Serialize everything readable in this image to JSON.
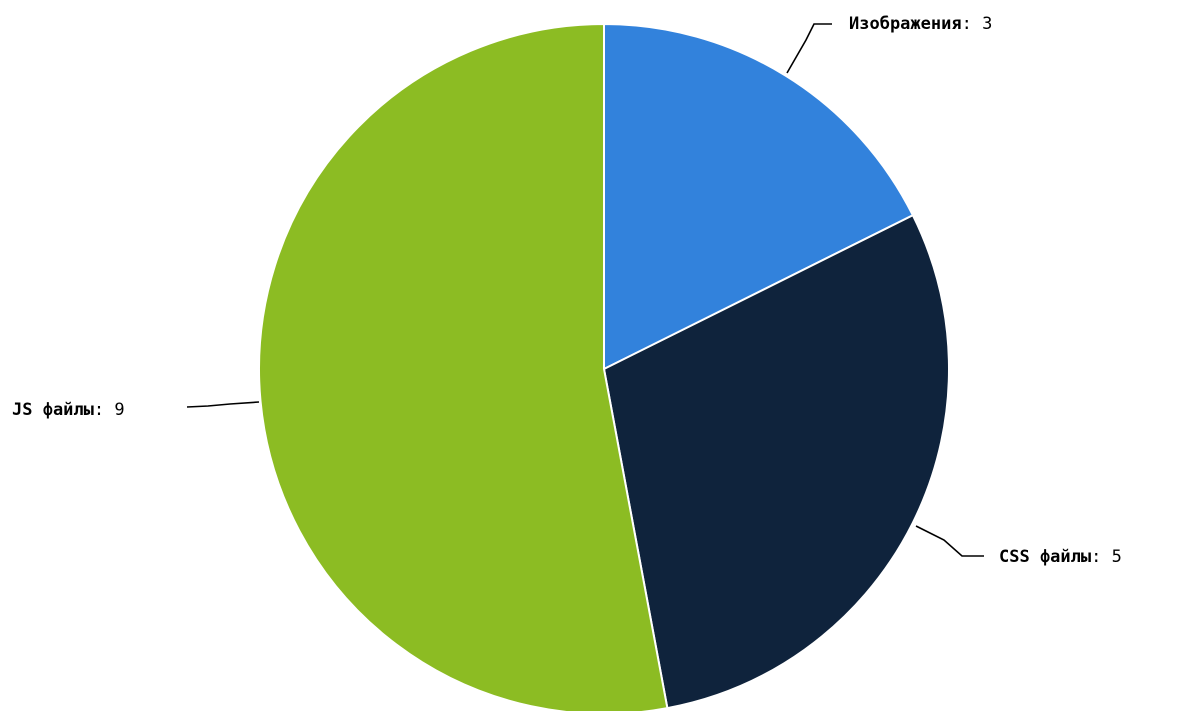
{
  "chart_data": {
    "type": "pie",
    "title": "",
    "categories": [
      "Изображения",
      "CSS файлы",
      "JS файлы"
    ],
    "values": [
      3,
      5,
      9
    ],
    "colors": [
      "#3282dc",
      "#0f233c",
      "#8cbc23"
    ],
    "label_separator": ":",
    "start_angle": "12 o'clock",
    "direction": "clockwise",
    "legend": "none",
    "data_labels": "outside, with leader lines"
  }
}
